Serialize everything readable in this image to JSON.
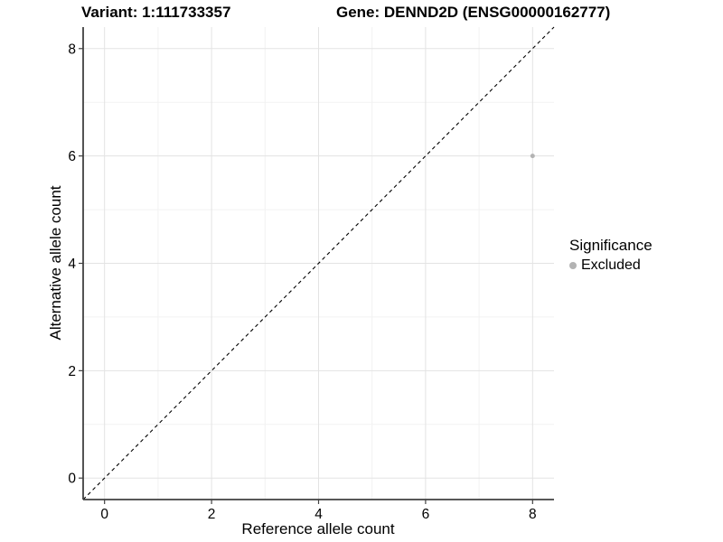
{
  "header": {
    "variant_title": "Variant: 1:111733357",
    "gene_title": "Gene: DENND2D (ENSG00000162777)"
  },
  "legend": {
    "title": "Significance",
    "items": [
      {
        "label": "Excluded",
        "color": "#b3b3b3"
      }
    ]
  },
  "colors": {
    "background": "#ffffff",
    "text": "#000000",
    "grid_major": "#e3e3e3",
    "grid_minor": "#f2f2f2",
    "axis_line": "#404040",
    "identity_line": "#000000",
    "point": "#b3b3b3"
  },
  "chart_data": {
    "type": "scatter",
    "title_left": "Variant: 1:111733357",
    "title_right": "Gene: DENND2D (ENSG00000162777)",
    "xlabel": "Reference allele count",
    "ylabel": "Alternative allele count",
    "xlim": [
      -0.4,
      8.4
    ],
    "ylim": [
      -0.4,
      8.4
    ],
    "x_ticks": [
      0,
      2,
      4,
      6,
      8
    ],
    "y_ticks": [
      0,
      2,
      4,
      6,
      8
    ],
    "x_minor_ticks": [
      1,
      3,
      5,
      7
    ],
    "y_minor_ticks": [
      1,
      3,
      5,
      7
    ],
    "grid": "major+minor",
    "legend_position": "right",
    "series": [
      {
        "name": "Excluded",
        "points": [
          {
            "x": 8,
            "y": 6
          }
        ]
      }
    ],
    "identity_line": {
      "slope": 1,
      "intercept": 0,
      "style": "dashed"
    }
  }
}
